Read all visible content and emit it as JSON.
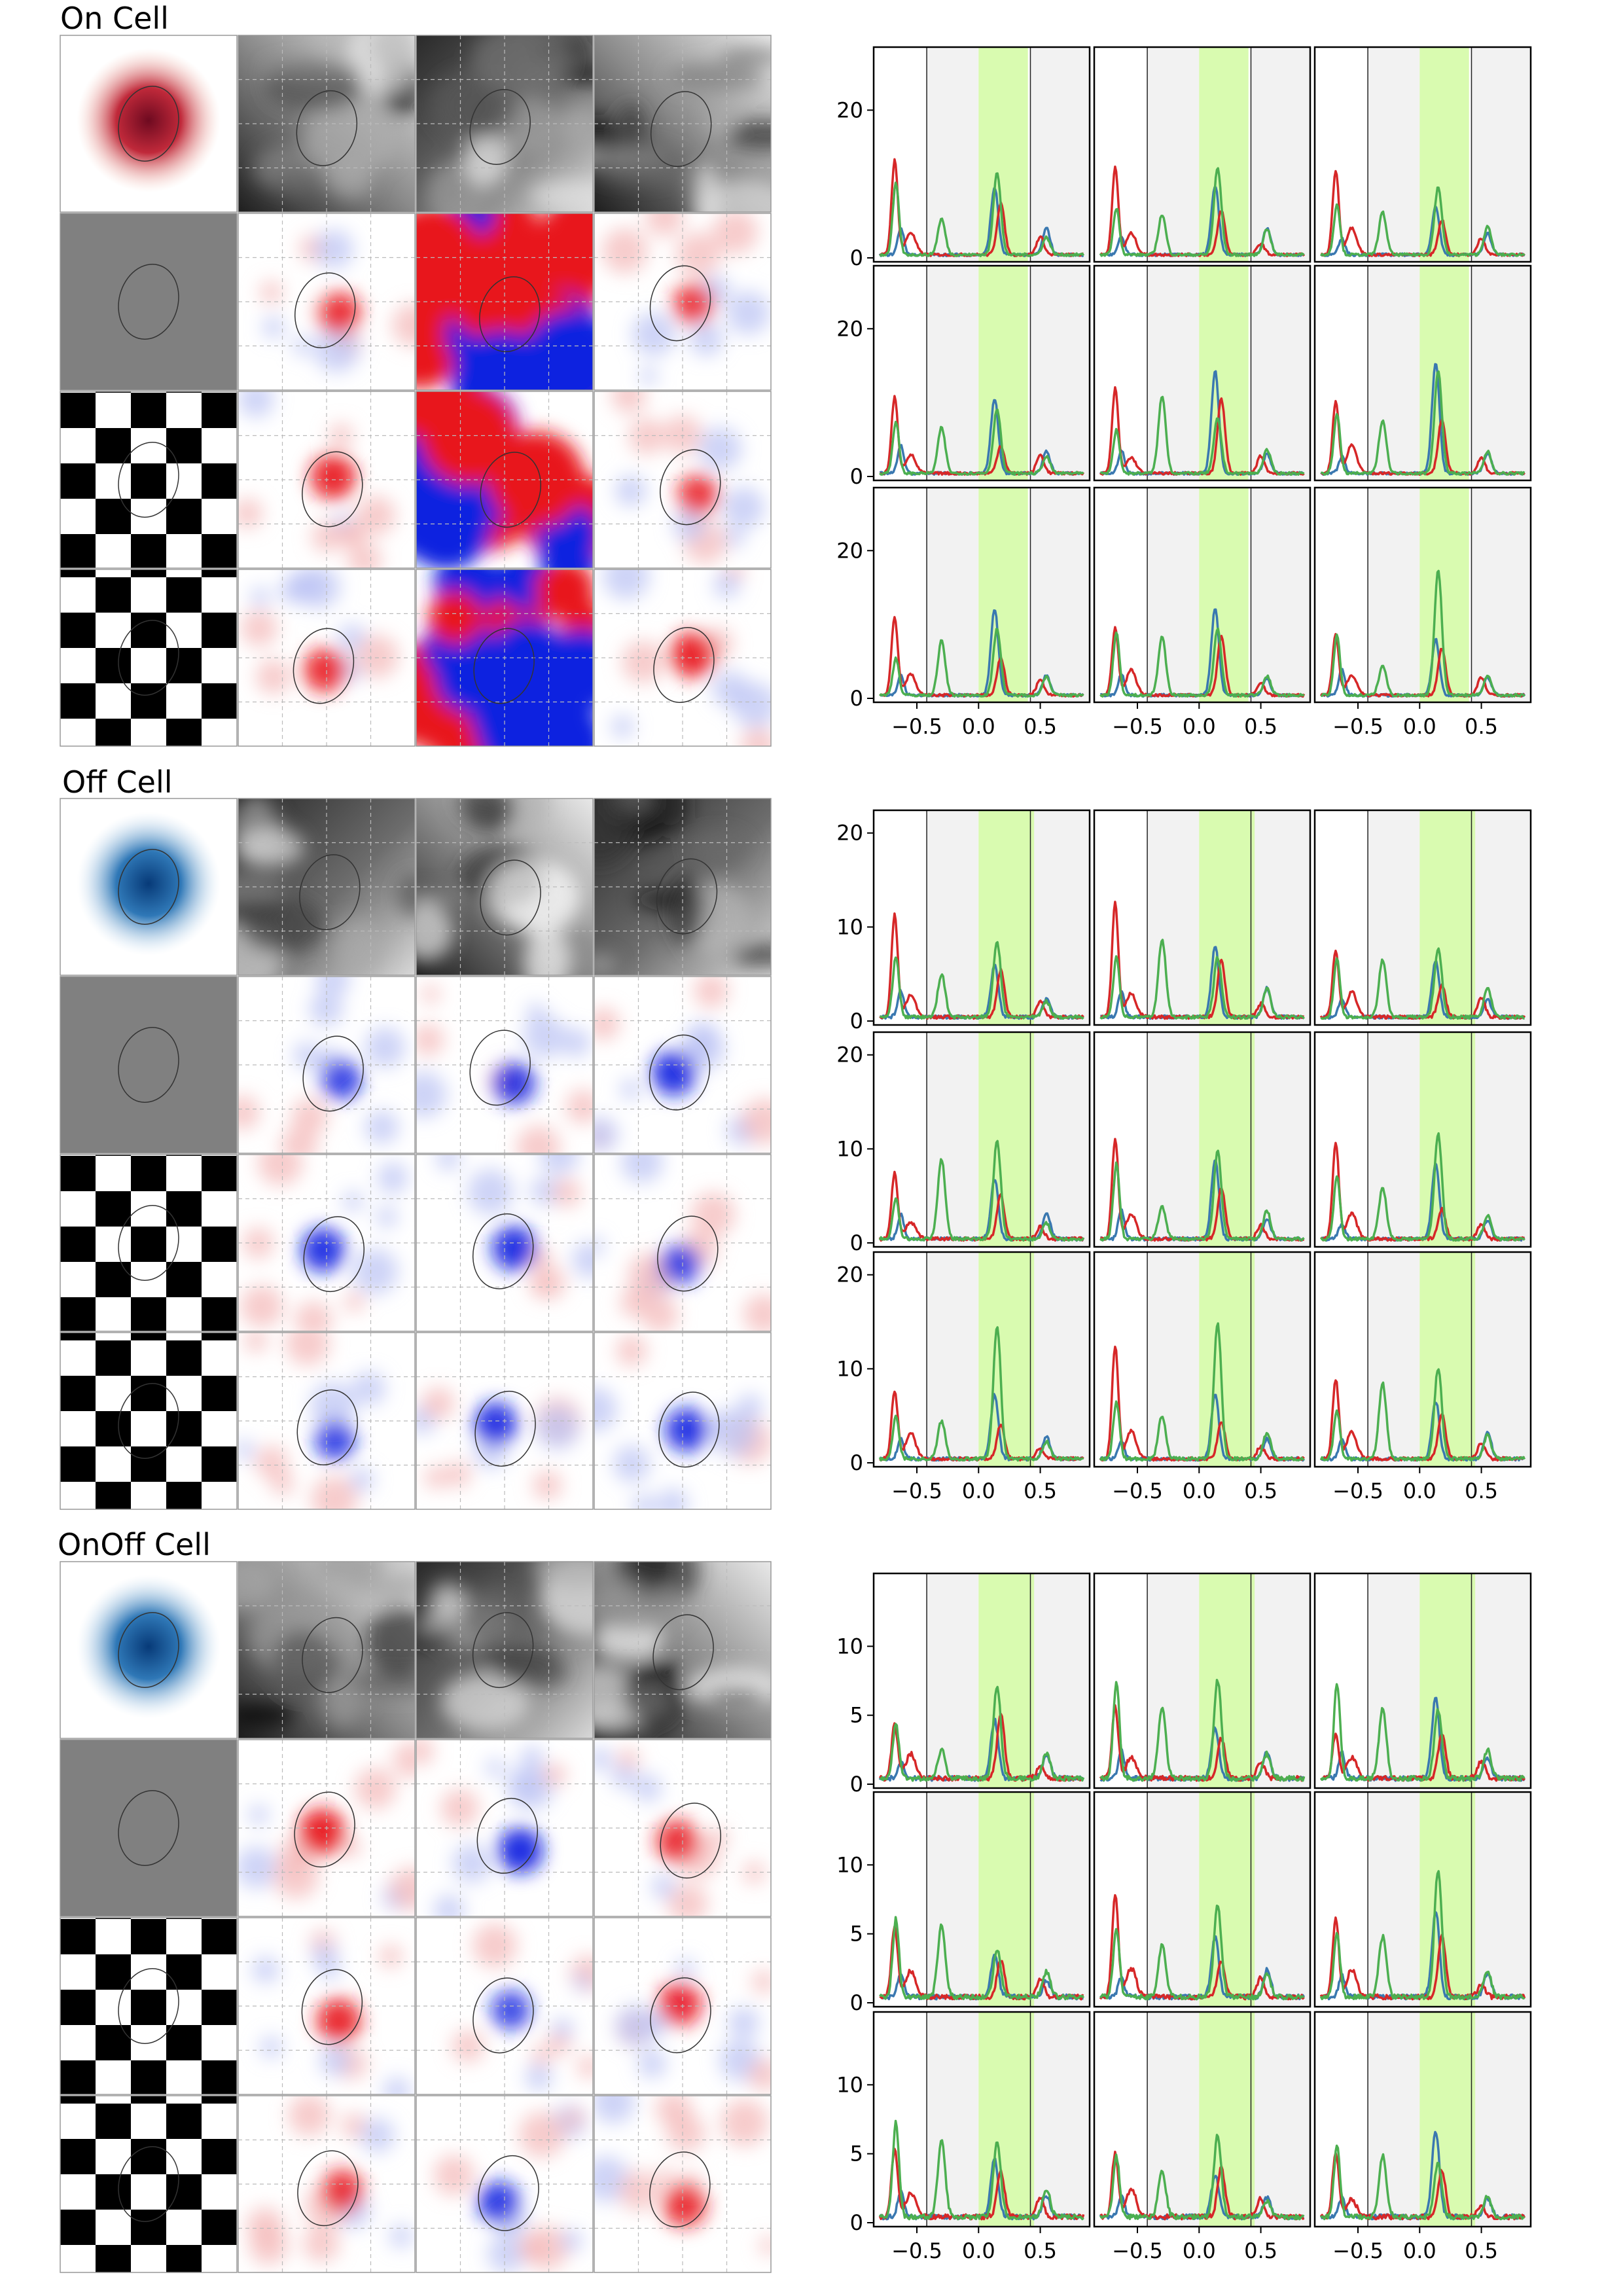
{
  "figure": {
    "panels": [
      {
        "label": "On Cell",
        "rf_color": "#7a0a1e",
        "image_tiles": [
          {
            "kind": "gray",
            "name": "photo-stimulus"
          },
          {
            "kind": "gray",
            "name": "photo-stimulus"
          },
          {
            "kind": "gray",
            "name": "photo-stimulus"
          },
          {
            "kind": "gray",
            "name": "gray-stimulus"
          },
          {
            "kind": "checker",
            "name": "checkerboard-stimulus"
          },
          {
            "kind": "checker",
            "name": "checkerboard-stimulus"
          }
        ]
      },
      {
        "label": "Off Cell",
        "rf_color": "#0d4a8a"
      },
      {
        "label": "OnOff Cell",
        "rf_color": "#0d4a8a"
      }
    ],
    "colors": {
      "blue_trace": "#3a78b0",
      "red_trace": "#d62728",
      "green_trace": "#4caf50",
      "green_window": "#d9fbb0",
      "gray_band": "#f2f2f2",
      "on_map": "#e8141e",
      "off_map": "#1020e0"
    }
  },
  "chart_data": [
    {
      "type": "line",
      "panel": "On Cell",
      "x_ticks": [
        "−0.5",
        "0.0",
        "0.5"
      ],
      "xlim": [
        -0.85,
        0.9
      ],
      "y_ticks": [
        "0",
        "20"
      ],
      "ylim": [
        0,
        28
      ],
      "shaded_window": [
        0.0,
        0.4
      ],
      "series_colors": [
        "#3a78b0",
        "#d62728",
        "#4caf50"
      ],
      "grid": "3x3"
    },
    {
      "type": "line",
      "panel": "Off Cell",
      "x_ticks": [
        "−0.5",
        "0.0",
        "0.5"
      ],
      "xlim": [
        -0.85,
        0.9
      ],
      "y_ticks": [
        "0",
        "10",
        "20"
      ],
      "ylim": [
        0,
        22
      ],
      "shaded_window": [
        0.0,
        0.45
      ],
      "series_colors": [
        "#3a78b0",
        "#d62728",
        "#4caf50"
      ],
      "grid": "3x3"
    },
    {
      "type": "line",
      "panel": "OnOff Cell",
      "x_ticks": [
        "−0.5",
        "0.0",
        "0.5"
      ],
      "xlim": [
        -0.85,
        0.9
      ],
      "y_ticks": [
        "0",
        "5",
        "10"
      ],
      "ylim": [
        0,
        15
      ],
      "shaded_window": [
        0.0,
        0.45
      ],
      "series_colors": [
        "#3a78b0",
        "#d62728",
        "#4caf50"
      ],
      "grid": "3x3"
    }
  ]
}
